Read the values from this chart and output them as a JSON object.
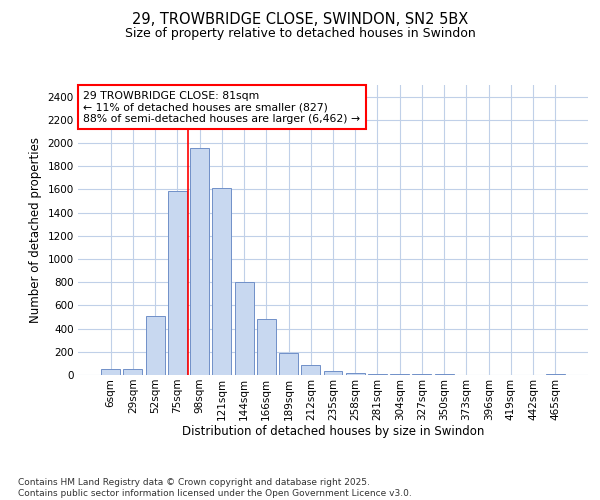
{
  "title": "29, TROWBRIDGE CLOSE, SWINDON, SN2 5BX",
  "subtitle": "Size of property relative to detached houses in Swindon",
  "xlabel": "Distribution of detached houses by size in Swindon",
  "ylabel": "Number of detached properties",
  "categories": [
    "6sqm",
    "29sqm",
    "52sqm",
    "75sqm",
    "98sqm",
    "121sqm",
    "144sqm",
    "166sqm",
    "189sqm",
    "212sqm",
    "235sqm",
    "258sqm",
    "281sqm",
    "304sqm",
    "327sqm",
    "350sqm",
    "373sqm",
    "396sqm",
    "419sqm",
    "442sqm",
    "465sqm"
  ],
  "values": [
    50,
    50,
    510,
    1590,
    1960,
    1610,
    800,
    480,
    190,
    90,
    35,
    20,
    5,
    5,
    5,
    5,
    3,
    3,
    3,
    3,
    10
  ],
  "bar_color": "#c8d8f0",
  "bar_edge_color": "#7090c8",
  "red_line_x": 3.5,
  "annotation_line1": "29 TROWBRIDGE CLOSE: 81sqm",
  "annotation_line2": "← 11% of detached houses are smaller (827)",
  "annotation_line3": "88% of semi-detached houses are larger (6,462) →",
  "ylim": [
    0,
    2500
  ],
  "yticks": [
    0,
    200,
    400,
    600,
    800,
    1000,
    1200,
    1400,
    1600,
    1800,
    2000,
    2200,
    2400
  ],
  "bg_color": "#ffffff",
  "grid_color": "#c0d0e8",
  "fig_bg": "#ffffff",
  "footer_line1": "Contains HM Land Registry data © Crown copyright and database right 2025.",
  "footer_line2": "Contains public sector information licensed under the Open Government Licence v3.0."
}
